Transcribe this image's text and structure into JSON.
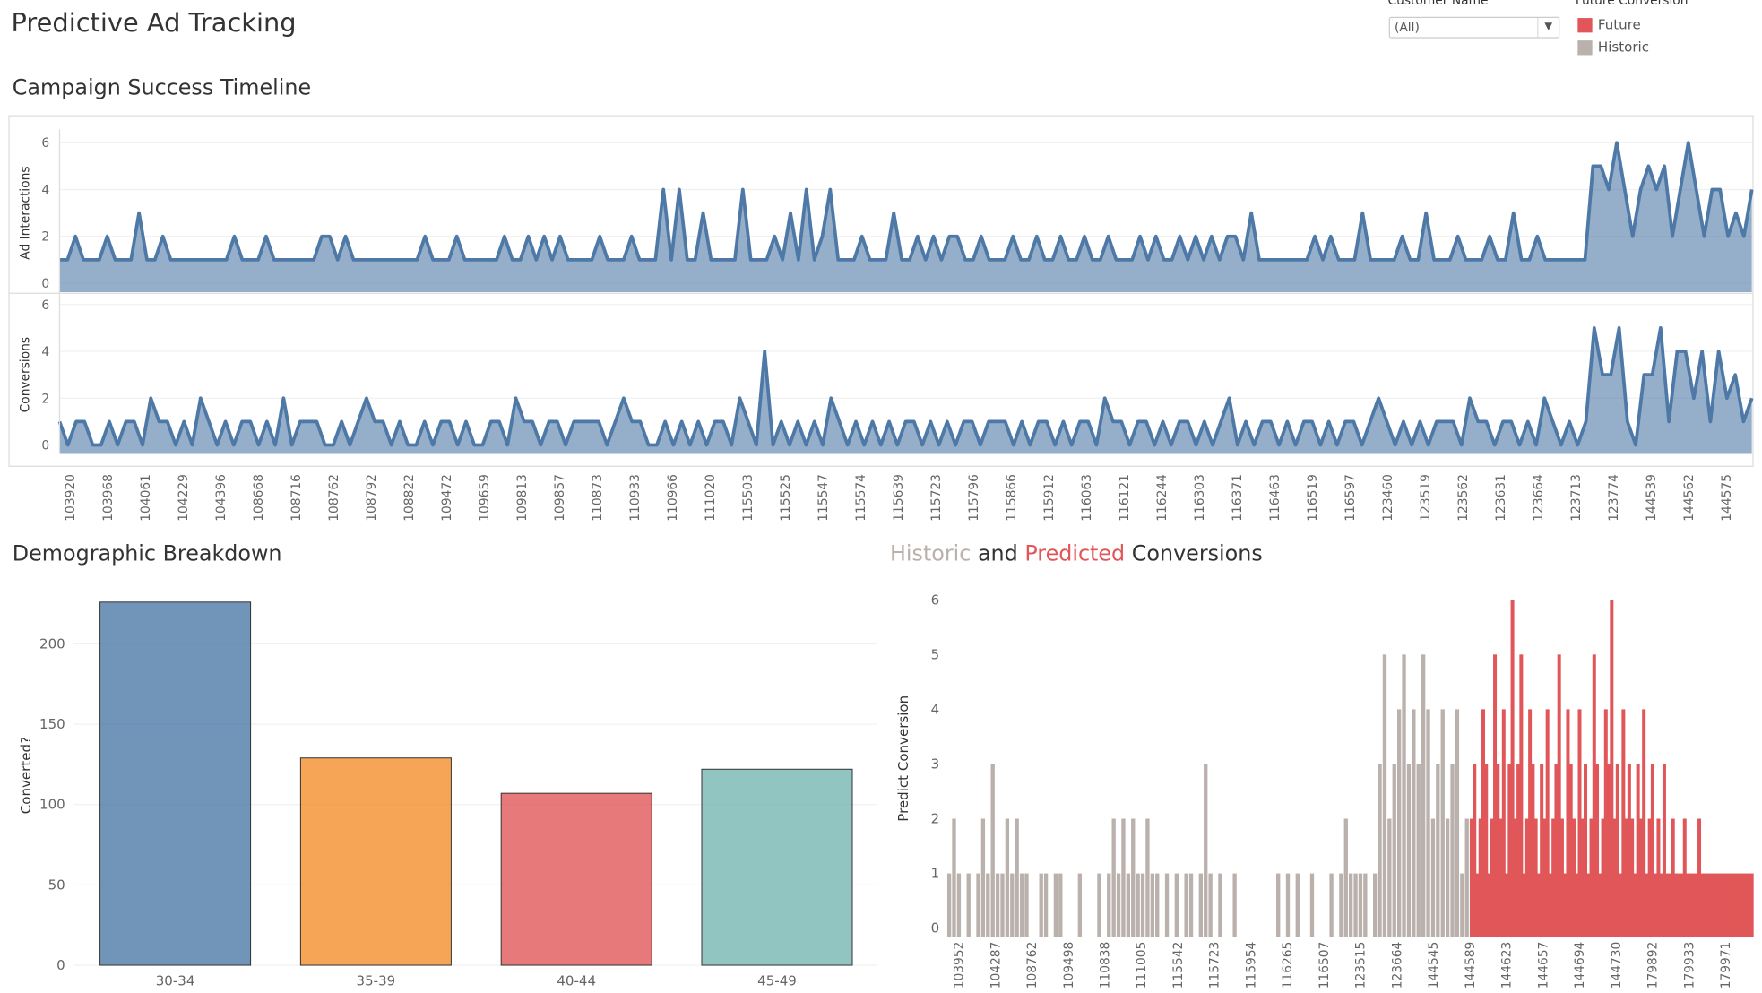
{
  "header": {
    "title": "Predictive Ad Tracking"
  },
  "filter": {
    "label": "Customer Name",
    "value": "(All)",
    "icon": "chevron-down-icon"
  },
  "legend": {
    "title": "Future Conversion",
    "items": [
      {
        "label": "Future",
        "color": "#e15759"
      },
      {
        "label": "Historic",
        "color": "#bab0ac"
      }
    ]
  },
  "sections": {
    "timeline": "Campaign Success Timeline",
    "demographic": "Demographic Breakdown",
    "predicted_parts": [
      "Historic",
      " and ",
      "Predicted",
      " Conversions"
    ]
  },
  "chart_data": [
    {
      "type": "area",
      "title": "Campaign Success Timeline",
      "ylabel": "Ad Interactions",
      "ylim": [
        0,
        6.5
      ],
      "yticks": [
        0,
        2,
        4,
        6
      ],
      "color": "#4e79a7",
      "xtick_labels": [
        "103920",
        "103968",
        "104061",
        "104229",
        "104396",
        "108668",
        "108716",
        "108762",
        "108792",
        "108822",
        "109472",
        "109659",
        "109813",
        "109857",
        "110873",
        "110933",
        "110966",
        "111020",
        "115503",
        "115525",
        "115547",
        "115574",
        "115639",
        "115723",
        "115796",
        "115866",
        "115912",
        "116063",
        "116121",
        "116244",
        "116303",
        "116371",
        "116463",
        "116519",
        "116597",
        "123460",
        "123519",
        "123562",
        "123631",
        "123664",
        "123713",
        "123774",
        "144539",
        "144562",
        "144575"
      ],
      "values": [
        1,
        1,
        2,
        1,
        1,
        1,
        2,
        1,
        1,
        1,
        3,
        1,
        1,
        2,
        1,
        1,
        1,
        1,
        1,
        1,
        1,
        1,
        2,
        1,
        1,
        1,
        2,
        1,
        1,
        1,
        1,
        1,
        1,
        2,
        2,
        1,
        2,
        1,
        1,
        1,
        1,
        1,
        1,
        1,
        1,
        1,
        2,
        1,
        1,
        1,
        2,
        1,
        1,
        1,
        1,
        1,
        2,
        1,
        1,
        2,
        1,
        2,
        1,
        2,
        1,
        1,
        1,
        1,
        2,
        1,
        1,
        1,
        2,
        1,
        1,
        1,
        4,
        1,
        4,
        1,
        1,
        3,
        1,
        1,
        1,
        1,
        4,
        1,
        1,
        1,
        2,
        1,
        3,
        1,
        4,
        1,
        2,
        4,
        1,
        1,
        1,
        2,
        1,
        1,
        1,
        3,
        1,
        1,
        2,
        1,
        2,
        1,
        2,
        2,
        1,
        1,
        2,
        1,
        1,
        1,
        2,
        1,
        1,
        2,
        1,
        1,
        2,
        1,
        1,
        2,
        1,
        1,
        2,
        1,
        1,
        1,
        2,
        1,
        2,
        1,
        1,
        2,
        1,
        2,
        1,
        2,
        1,
        2,
        2,
        1,
        3,
        1,
        1,
        1,
        1,
        1,
        1,
        1,
        2,
        1,
        2,
        1,
        1,
        1,
        3,
        1,
        1,
        1,
        1,
        2,
        1,
        1,
        3,
        1,
        1,
        1,
        2,
        1,
        1,
        1,
        2,
        1,
        1,
        3,
        1,
        1,
        2,
        1,
        1,
        1,
        1,
        1,
        1,
        5,
        5,
        4,
        6,
        4,
        2,
        4,
        5,
        4,
        5,
        2,
        4,
        6,
        4,
        2,
        4,
        4,
        2,
        3,
        2,
        4
      ]
    },
    {
      "type": "area",
      "ylabel": "Conversions",
      "ylim": [
        0,
        6.5
      ],
      "yticks": [
        0,
        2,
        4,
        6
      ],
      "color": "#4e79a7",
      "values": [
        1,
        0,
        1,
        1,
        0,
        0,
        1,
        0,
        1,
        1,
        0,
        2,
        1,
        1,
        0,
        1,
        0,
        2,
        1,
        0,
        1,
        0,
        1,
        1,
        0,
        1,
        0,
        2,
        0,
        1,
        1,
        1,
        0,
        0,
        1,
        0,
        1,
        2,
        1,
        1,
        0,
        1,
        0,
        0,
        1,
        0,
        1,
        1,
        0,
        1,
        0,
        0,
        1,
        1,
        0,
        2,
        1,
        1,
        0,
        1,
        1,
        0,
        1,
        1,
        1,
        1,
        0,
        1,
        2,
        1,
        1,
        0,
        0,
        1,
        0,
        1,
        0,
        1,
        0,
        1,
        1,
        0,
        2,
        1,
        0,
        4,
        0,
        1,
        0,
        1,
        0,
        1,
        0,
        2,
        1,
        0,
        1,
        0,
        1,
        0,
        1,
        0,
        1,
        1,
        0,
        1,
        0,
        1,
        0,
        1,
        1,
        0,
        1,
        1,
        1,
        0,
        1,
        0,
        1,
        1,
        0,
        1,
        0,
        1,
        1,
        0,
        2,
        1,
        1,
        0,
        1,
        1,
        0,
        1,
        0,
        1,
        1,
        0,
        1,
        0,
        1,
        2,
        0,
        1,
        0,
        1,
        1,
        0,
        1,
        0,
        1,
        1,
        0,
        1,
        0,
        1,
        1,
        0,
        1,
        2,
        1,
        0,
        1,
        0,
        1,
        0,
        1,
        1,
        1,
        0,
        2,
        1,
        1,
        0,
        1,
        1,
        0,
        1,
        0,
        2,
        1,
        0,
        1,
        0,
        1,
        5,
        3,
        3,
        5,
        1,
        0,
        3,
        3,
        5,
        1,
        4,
        4,
        2,
        4,
        1,
        4,
        2,
        3,
        1,
        2
      ]
    },
    {
      "type": "bar",
      "title": "Demographic Breakdown",
      "ylabel": "Converted?",
      "ylim": [
        0,
        230
      ],
      "yticks": [
        0,
        50,
        100,
        150,
        200
      ],
      "categories": [
        "30-34",
        "35-39",
        "40-44",
        "45-49"
      ],
      "values": [
        226,
        129,
        107,
        122
      ],
      "colors": [
        "#4e79a7",
        "#f28e2b",
        "#e15759",
        "#76b7b2"
      ]
    },
    {
      "type": "bar",
      "title": "Historic and Predicted Conversions",
      "ylabel": "Predict Conversion",
      "ylim": [
        0,
        6.2
      ],
      "yticks": [
        0,
        1,
        2,
        3,
        4,
        5,
        6
      ],
      "xtick_labels": [
        "103952",
        "104287",
        "108762",
        "109498",
        "110838",
        "111005",
        "115542",
        "115723",
        "115954",
        "116265",
        "116507",
        "123515",
        "123664",
        "144545",
        "144589",
        "144623",
        "144657",
        "144694",
        "144730",
        "179892",
        "179933",
        "179971"
      ],
      "historic": [
        1,
        2,
        1,
        0,
        1,
        0,
        1,
        2,
        1,
        3,
        1,
        1,
        2,
        1,
        2,
        1,
        1,
        0,
        0,
        1,
        1,
        0,
        1,
        1,
        0,
        0,
        0,
        1,
        0,
        0,
        0,
        1,
        0,
        1,
        2,
        1,
        2,
        1,
        2,
        1,
        1,
        2,
        1,
        1,
        0,
        1,
        0,
        1,
        0,
        1,
        1,
        0,
        1,
        3,
        1,
        0,
        1,
        0,
        0,
        1,
        0,
        0,
        0,
        0,
        0,
        0,
        0,
        0,
        1,
        0,
        1,
        0,
        1,
        0,
        0,
        1,
        0,
        0,
        0,
        1,
        0,
        1,
        2,
        1,
        1,
        1,
        1,
        0,
        1,
        3,
        5,
        2,
        3,
        4,
        5,
        3,
        4,
        3,
        5,
        4,
        2,
        3,
        4,
        2,
        3,
        4,
        1,
        2
      ],
      "future": [
        2,
        3,
        1,
        2,
        4,
        3,
        1,
        2,
        5,
        3,
        2,
        4,
        1,
        3,
        6,
        2,
        3,
        5,
        1,
        2,
        4,
        3,
        2,
        1,
        3,
        2,
        4,
        1,
        2,
        3,
        5,
        2,
        1,
        4,
        3,
        2,
        1,
        4,
        2,
        3,
        1,
        2,
        5,
        3,
        1,
        2,
        4,
        3,
        6,
        2,
        3,
        1,
        4,
        2,
        3,
        2,
        1,
        3,
        2,
        4,
        1,
        2,
        3,
        1,
        2,
        1,
        3,
        1,
        1,
        2,
        1,
        1,
        1,
        2,
        1,
        1,
        1,
        1,
        2,
        1,
        1,
        1,
        1,
        1,
        1,
        1,
        1,
        1,
        1,
        1,
        1,
        1,
        1,
        1,
        1,
        1,
        1
      ]
    }
  ]
}
